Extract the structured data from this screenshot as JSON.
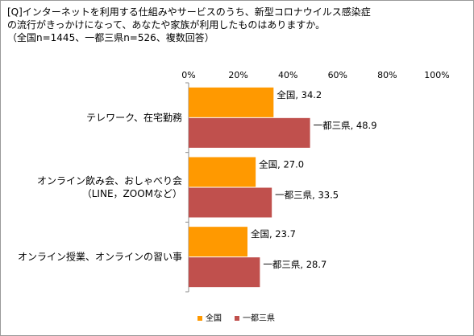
{
  "chart_data": {
    "type": "bar",
    "orientation": "horizontal",
    "title_lines": [
      "[Q]インターネットを利用する仕組みやサービスのうち、新型コロナウイルス感染症",
      "の流行がきっかけになって、あなたや家族が利用したものはありますか。",
      "（全国n=1445、一都三県n=526、複数回答）"
    ],
    "categories": [
      [
        "テレワーク、在宅勤務"
      ],
      [
        "オンライン飲み会、おしゃべり会",
        "（LINE，ZOOMなど）"
      ],
      [
        "オンライン授業、オンラインの習い事"
      ]
    ],
    "series": [
      {
        "name": "全国",
        "color": "#ff9900",
        "values": [
          34.2,
          27.0,
          23.7
        ]
      },
      {
        "name": "一都三県",
        "color": "#c0504d",
        "values": [
          48.9,
          33.5,
          28.7
        ]
      }
    ],
    "xlim": [
      0,
      100
    ],
    "ticks": [
      0,
      20,
      40,
      60,
      80,
      100
    ],
    "tick_labels": [
      "0%",
      "20%",
      "40%",
      "60%",
      "80%",
      "100%"
    ],
    "data_labels": [
      [
        "全国, 34.2",
        "全国, 27.0",
        "全国, 23.7"
      ],
      [
        "一都三県, 48.9",
        "一都三県, 33.5",
        "一都三県, 28.7"
      ]
    ],
    "legend": {
      "position": "bottom",
      "entries": [
        "全国",
        "一都三県"
      ]
    },
    "grid": false
  }
}
